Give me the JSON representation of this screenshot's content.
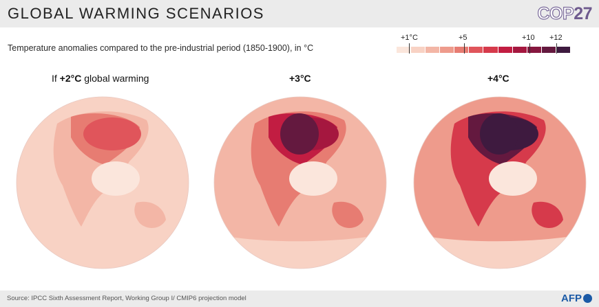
{
  "header": {
    "title": "GLOBAL WARMING SCENARIOS",
    "logo_part1": "COP",
    "logo_part2": "27"
  },
  "subtitle": "Temperature anomalies compared to the pre-industrial period (1850-1900), in °C",
  "legend": {
    "ticks": [
      "+1°C",
      "+5",
      "+10",
      "+12"
    ],
    "colors": [
      "#fbe6dc",
      "#f8d2c4",
      "#f3b6a6",
      "#ee9b8c",
      "#e77c72",
      "#e0555b",
      "#d63a4b",
      "#c21d42",
      "#a5173f",
      "#86173f",
      "#64193f",
      "#3e1a3f"
    ]
  },
  "panels": [
    {
      "prefix": "If ",
      "value": "+2°C",
      "suffix": " global warming",
      "level": 2
    },
    {
      "prefix": "",
      "value": "+3°C",
      "suffix": "",
      "level": 3
    },
    {
      "prefix": "",
      "value": "+4°C",
      "suffix": "",
      "level": 4
    }
  ],
  "footer": {
    "source": "Source: IPCC Sixth Assessment Report, Working Group I/ CMIP6 projection model",
    "credit": "AFP"
  }
}
